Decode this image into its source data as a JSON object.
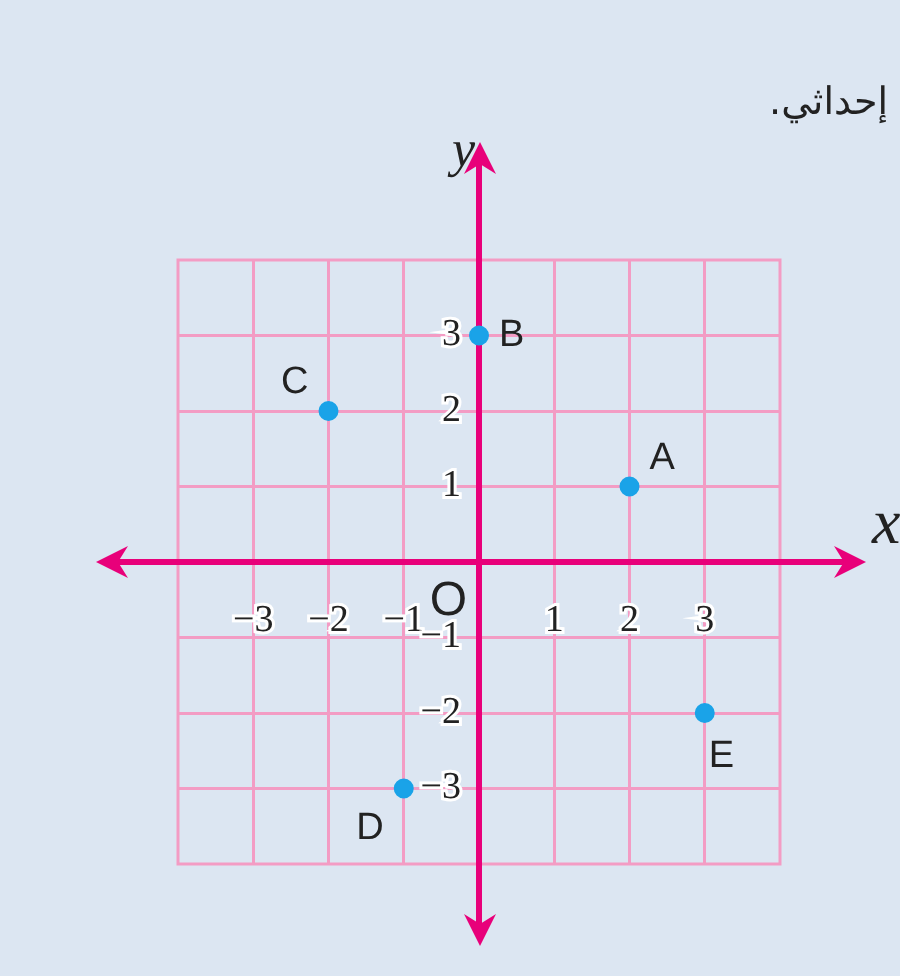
{
  "chart_data": {
    "type": "scatter",
    "xlabel": "x",
    "ylabel": "y",
    "x": [
      2,
      0,
      -2,
      -1,
      3
    ],
    "values": [
      1,
      3,
      2,
      -3,
      -2
    ],
    "color": "#1aa3e8",
    "marker": "circle",
    "grid": true,
    "xlim": [
      -4,
      4
    ],
    "ylim": [
      -4,
      4
    ],
    "xticks": [
      -3,
      -2,
      -1,
      1,
      2,
      3
    ],
    "yticks": [
      -3,
      -2,
      -1,
      1,
      2,
      3
    ],
    "annotations": [
      "إحداثي.",
      "O",
      {
        "text": "A",
        "x": 2,
        "y": 1
      },
      {
        "text": "B",
        "x": 0,
        "y": 3
      },
      {
        "text": "C",
        "x": -2,
        "y": 2
      },
      {
        "text": "D",
        "x": -1,
        "y": -3
      },
      {
        "text": "E",
        "x": 3,
        "y": -2
      }
    ]
  }
}
